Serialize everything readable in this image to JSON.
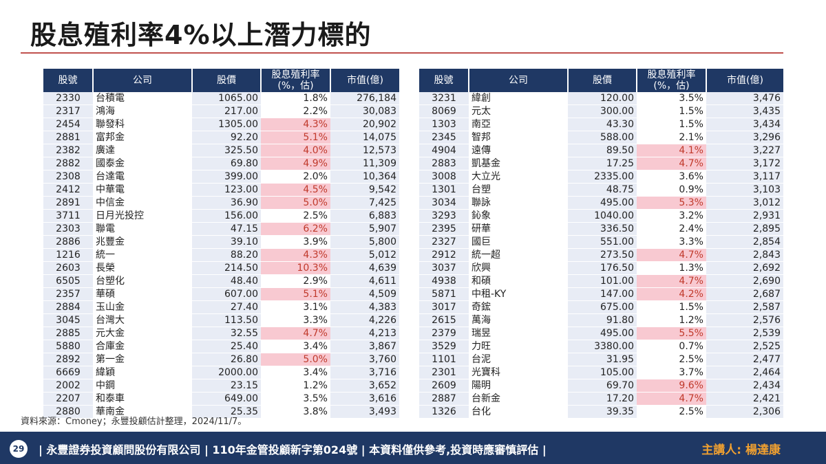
{
  "title": "股息殖利率4%以上潛力標的",
  "headers": {
    "code": "股號",
    "company": "公司",
    "price": "股價",
    "yield_line1": "股息殖利率",
    "yield_line2": "(%，估)",
    "mcap": "市值(億)"
  },
  "colors": {
    "header_bg": "#1f3864",
    "highlight_bg": "#f8c9d1",
    "highlight_text": "#c0392b",
    "title_rule": "#c0504d",
    "presenter": "#f0a030"
  },
  "highlight_threshold_percent": 4,
  "left_table": [
    {
      "code": "2330",
      "name": "台積電",
      "price": "1065.00",
      "yield": "1.8%",
      "mcap": "276,184"
    },
    {
      "code": "2317",
      "name": "鴻海",
      "price": "217.00",
      "yield": "2.2%",
      "mcap": "30,083"
    },
    {
      "code": "2454",
      "name": "聯發科",
      "price": "1305.00",
      "yield": "4.3%",
      "mcap": "20,902"
    },
    {
      "code": "2881",
      "name": "富邦金",
      "price": "92.20",
      "yield": "5.1%",
      "mcap": "14,075"
    },
    {
      "code": "2382",
      "name": "廣達",
      "price": "325.50",
      "yield": "4.0%",
      "mcap": "12,573"
    },
    {
      "code": "2882",
      "name": "國泰金",
      "price": "69.80",
      "yield": "4.9%",
      "mcap": "11,309"
    },
    {
      "code": "2308",
      "name": "台達電",
      "price": "399.00",
      "yield": "2.0%",
      "mcap": "10,364"
    },
    {
      "code": "2412",
      "name": "中華電",
      "price": "123.00",
      "yield": "4.5%",
      "mcap": "9,542"
    },
    {
      "code": "2891",
      "name": "中信金",
      "price": "36.90",
      "yield": "5.0%",
      "mcap": "7,425"
    },
    {
      "code": "3711",
      "name": "日月光投控",
      "price": "156.00",
      "yield": "2.5%",
      "mcap": "6,883"
    },
    {
      "code": "2303",
      "name": "聯電",
      "price": "47.15",
      "yield": "6.2%",
      "mcap": "5,907"
    },
    {
      "code": "2886",
      "name": "兆豐金",
      "price": "39.10",
      "yield": "3.9%",
      "mcap": "5,800"
    },
    {
      "code": "1216",
      "name": "統一",
      "price": "88.20",
      "yield": "4.3%",
      "mcap": "5,012"
    },
    {
      "code": "2603",
      "name": "長榮",
      "price": "214.50",
      "yield": "10.3%",
      "mcap": "4,639"
    },
    {
      "code": "6505",
      "name": "台塑化",
      "price": "48.40",
      "yield": "2.9%",
      "mcap": "4,611"
    },
    {
      "code": "2357",
      "name": "華碩",
      "price": "607.00",
      "yield": "5.1%",
      "mcap": "4,509"
    },
    {
      "code": "2884",
      "name": "玉山金",
      "price": "27.40",
      "yield": "3.1%",
      "mcap": "4,383"
    },
    {
      "code": "3045",
      "name": "台灣大",
      "price": "113.50",
      "yield": "3.3%",
      "mcap": "4,226"
    },
    {
      "code": "2885",
      "name": "元大金",
      "price": "32.55",
      "yield": "4.7%",
      "mcap": "4,213"
    },
    {
      "code": "5880",
      "name": "合庫金",
      "price": "25.40",
      "yield": "3.4%",
      "mcap": "3,867"
    },
    {
      "code": "2892",
      "name": "第一金",
      "price": "26.80",
      "yield": "5.0%",
      "mcap": "3,760"
    },
    {
      "code": "6669",
      "name": "緯穎",
      "price": "2000.00",
      "yield": "3.4%",
      "mcap": "3,716"
    },
    {
      "code": "2002",
      "name": "中鋼",
      "price": "23.15",
      "yield": "1.2%",
      "mcap": "3,652"
    },
    {
      "code": "2207",
      "name": "和泰車",
      "price": "649.00",
      "yield": "3.5%",
      "mcap": "3,616"
    },
    {
      "code": "2880",
      "name": "華南金",
      "price": "25.35",
      "yield": "3.8%",
      "mcap": "3,493"
    }
  ],
  "right_table": [
    {
      "code": "3231",
      "name": "緯創",
      "price": "120.00",
      "yield": "3.5%",
      "mcap": "3,476"
    },
    {
      "code": "8069",
      "name": "元太",
      "price": "300.00",
      "yield": "1.5%",
      "mcap": "3,435"
    },
    {
      "code": "1303",
      "name": "南亞",
      "price": "43.30",
      "yield": "1.5%",
      "mcap": "3,434"
    },
    {
      "code": "2345",
      "name": "智邦",
      "price": "588.00",
      "yield": "2.1%",
      "mcap": "3,296"
    },
    {
      "code": "4904",
      "name": "遠傳",
      "price": "89.50",
      "yield": "4.1%",
      "mcap": "3,227"
    },
    {
      "code": "2883",
      "name": "凱基金",
      "price": "17.25",
      "yield": "4.7%",
      "mcap": "3,172"
    },
    {
      "code": "3008",
      "name": "大立光",
      "price": "2335.00",
      "yield": "3.6%",
      "mcap": "3,117"
    },
    {
      "code": "1301",
      "name": "台塑",
      "price": "48.75",
      "yield": "0.9%",
      "mcap": "3,103"
    },
    {
      "code": "3034",
      "name": "聯詠",
      "price": "495.00",
      "yield": "5.3%",
      "mcap": "3,012"
    },
    {
      "code": "3293",
      "name": "鈊象",
      "price": "1040.00",
      "yield": "3.2%",
      "mcap": "2,931"
    },
    {
      "code": "2395",
      "name": "研華",
      "price": "336.50",
      "yield": "2.4%",
      "mcap": "2,895"
    },
    {
      "code": "2327",
      "name": "國巨",
      "price": "551.00",
      "yield": "3.3%",
      "mcap": "2,854"
    },
    {
      "code": "2912",
      "name": "統一超",
      "price": "273.50",
      "yield": "4.7%",
      "mcap": "2,843"
    },
    {
      "code": "3037",
      "name": "欣興",
      "price": "176.50",
      "yield": "1.3%",
      "mcap": "2,692"
    },
    {
      "code": "4938",
      "name": "和碩",
      "price": "101.00",
      "yield": "4.7%",
      "mcap": "2,690"
    },
    {
      "code": "5871",
      "name": "中租-KY",
      "price": "147.00",
      "yield": "4.2%",
      "mcap": "2,687"
    },
    {
      "code": "3017",
      "name": "奇鋐",
      "price": "675.00",
      "yield": "1.5%",
      "mcap": "2,587"
    },
    {
      "code": "2615",
      "name": "萬海",
      "price": "91.80",
      "yield": "1.2%",
      "mcap": "2,576"
    },
    {
      "code": "2379",
      "name": "瑞昱",
      "price": "495.00",
      "yield": "5.5%",
      "mcap": "2,539"
    },
    {
      "code": "3529",
      "name": "力旺",
      "price": "3380.00",
      "yield": "0.7%",
      "mcap": "2,525"
    },
    {
      "code": "1101",
      "name": "台泥",
      "price": "31.95",
      "yield": "2.5%",
      "mcap": "2,477"
    },
    {
      "code": "2301",
      "name": "光寶科",
      "price": "105.00",
      "yield": "3.7%",
      "mcap": "2,464"
    },
    {
      "code": "2609",
      "name": "陽明",
      "price": "69.70",
      "yield": "9.6%",
      "mcap": "2,434"
    },
    {
      "code": "2887",
      "name": "台新金",
      "price": "17.20",
      "yield": "4.7%",
      "mcap": "2,421"
    },
    {
      "code": "1326",
      "name": "台化",
      "price": "39.35",
      "yield": "2.5%",
      "mcap": "2,306"
    }
  ],
  "source": "資料來源：Cmoney；永豐投顧估計整理，2024/11/7。",
  "footer": {
    "page_number": "29",
    "disclaimer": "| 永豐證券投資顧問股份有限公司 | 110年金管投顧新字第024號 | 本資料僅供參考,投資時應審慎評估 |",
    "presenter": "主講人: 楊達康"
  }
}
